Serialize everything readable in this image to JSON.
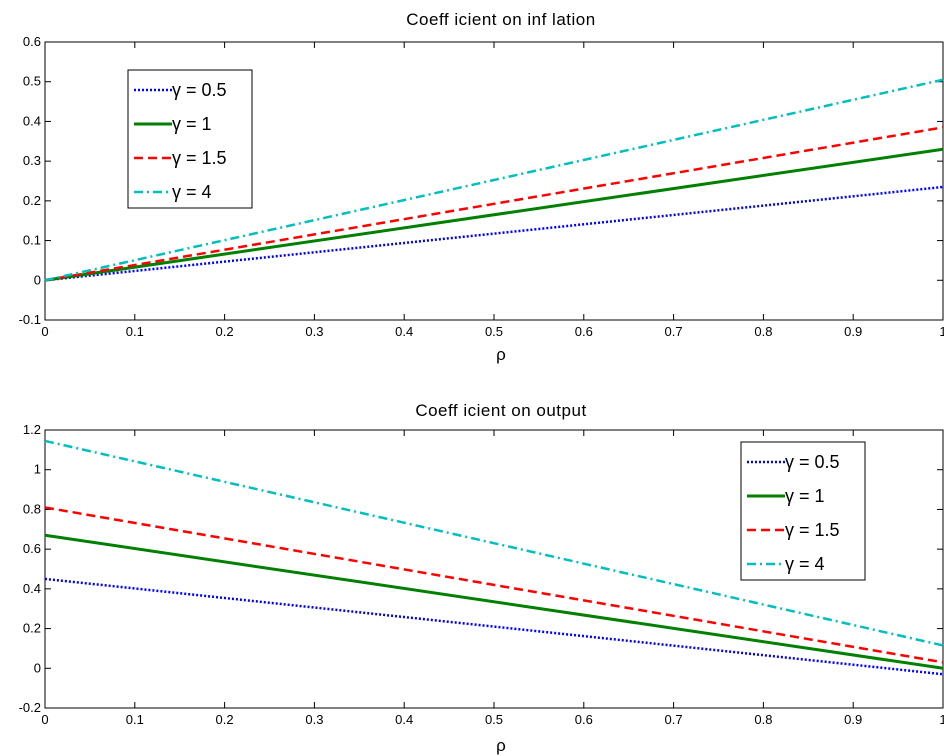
{
  "chart_data": [
    {
      "type": "line",
      "title": "Coeff icient on inf lation",
      "xlabel": "ρ",
      "ylabel": "",
      "xlim": [
        0,
        1
      ],
      "ylim": [
        -0.1,
        0.6
      ],
      "x": [
        0,
        1
      ],
      "xticks": [
        "0",
        "0.1",
        "0.2",
        "0.3",
        "0.4",
        "0.5",
        "0.6",
        "0.7",
        "0.8",
        "0.9",
        "1"
      ],
      "yticks": [
        "-0.1",
        "0",
        "0.1",
        "0.2",
        "0.3",
        "0.4",
        "0.5",
        "0.6"
      ],
      "legend_position": "top-left",
      "grid": false,
      "series": [
        {
          "name": "γ = 0.5",
          "values": [
            0,
            0.235
          ],
          "color": "#0000ff",
          "style": "dotted"
        },
        {
          "name": "γ = 1",
          "values": [
            0,
            0.33
          ],
          "color": "#008000",
          "style": "solid"
        },
        {
          "name": "γ = 1.5",
          "values": [
            0,
            0.385
          ],
          "color": "#ff0000",
          "style": "dashed"
        },
        {
          "name": "γ = 4",
          "values": [
            0,
            0.505
          ],
          "color": "#00bfbf",
          "style": "dashdot"
        }
      ]
    },
    {
      "type": "line",
      "title": "Coeff icient on output",
      "xlabel": "ρ",
      "ylabel": "",
      "xlim": [
        0,
        1
      ],
      "ylim": [
        -0.2,
        1.2
      ],
      "x": [
        0,
        1
      ],
      "xticks": [
        "0",
        "0.1",
        "0.2",
        "0.3",
        "0.4",
        "0.5",
        "0.6",
        "0.7",
        "0.8",
        "0.9",
        "1"
      ],
      "yticks": [
        "-0.2",
        "0",
        "0.2",
        "0.4",
        "0.6",
        "0.8",
        "1",
        "1.2"
      ],
      "legend_position": "top-right",
      "grid": false,
      "series": [
        {
          "name": "γ = 0.5",
          "values": [
            0.45,
            -0.03
          ],
          "color": "#0000ff",
          "style": "dotted"
        },
        {
          "name": "γ = 1",
          "values": [
            0.67,
            0.0
          ],
          "color": "#008000",
          "style": "solid"
        },
        {
          "name": "γ = 1.5",
          "values": [
            0.81,
            0.03
          ],
          "color": "#ff0000",
          "style": "dashed"
        },
        {
          "name": "γ = 4",
          "values": [
            1.145,
            0.115
          ],
          "color": "#00bfbf",
          "style": "dashdot"
        }
      ]
    }
  ]
}
